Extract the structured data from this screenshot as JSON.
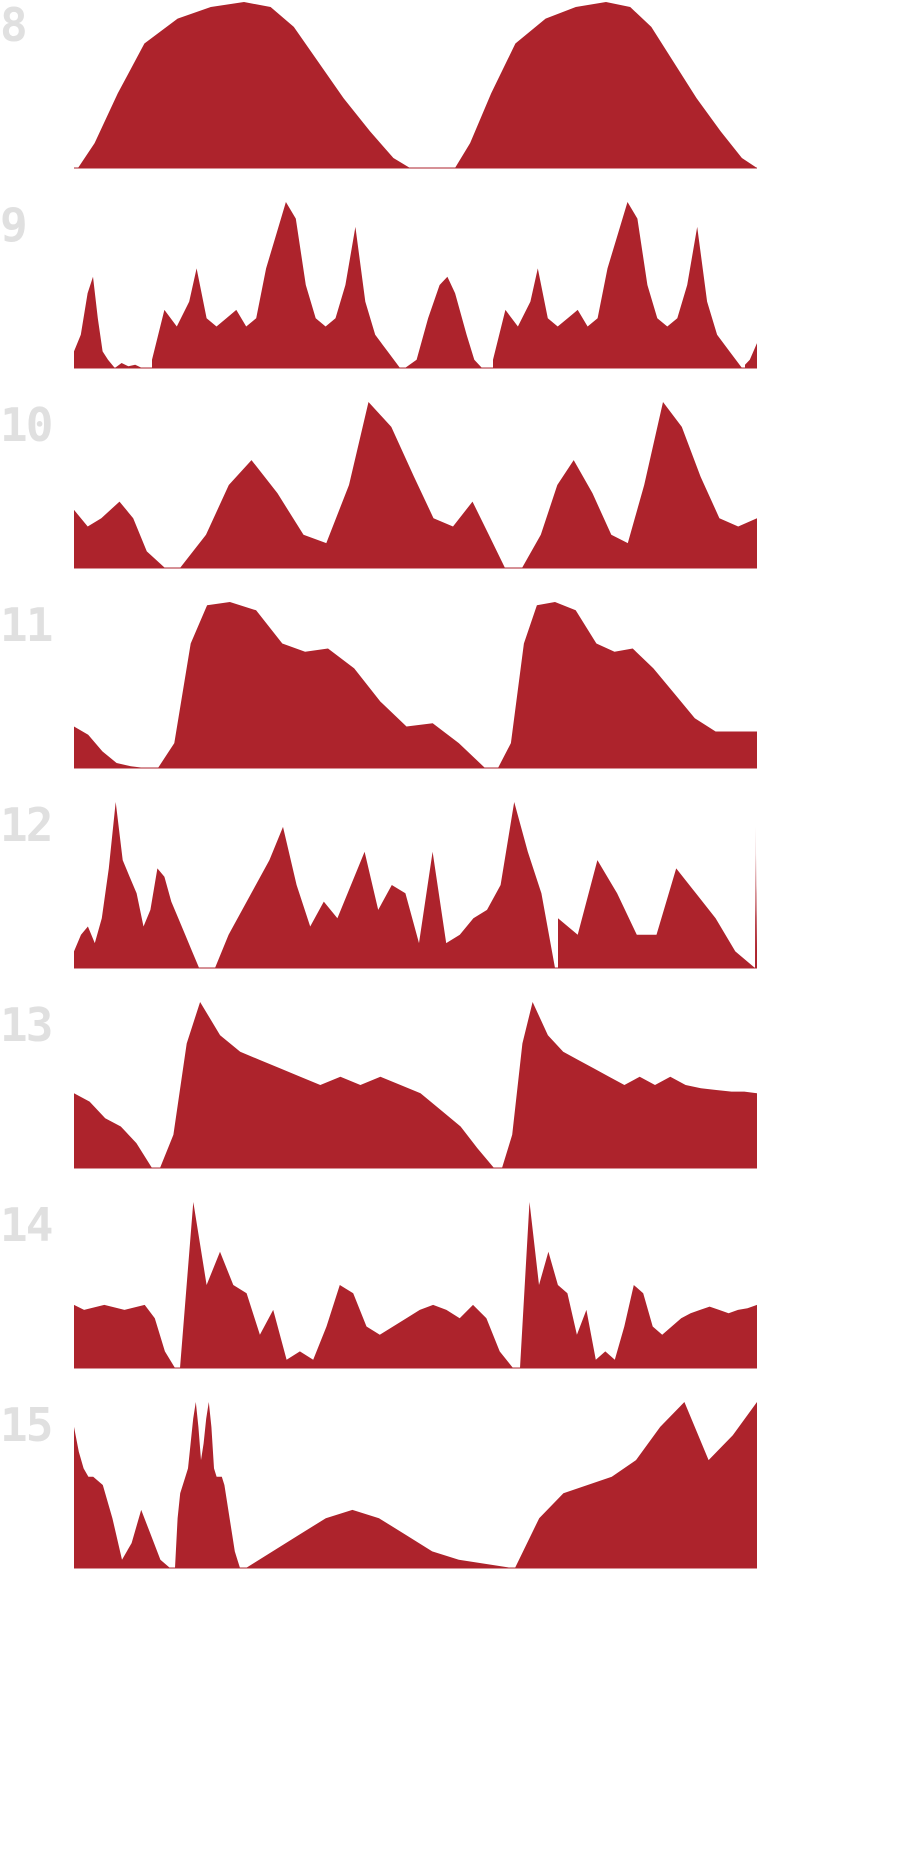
{
  "colors": {
    "fill": "#ad232c",
    "label": "#e0e0e0"
  },
  "chart_data": [
    {
      "type": "area",
      "label": "8",
      "segments": [
        {
          "x": [
            0,
            0.05,
            0.12,
            0.2,
            0.3,
            0.4,
            0.5,
            0.58,
            0.65,
            0.72,
            0.8,
            0.88,
            0.95,
            1.0
          ],
          "y": [
            0.0,
            0.15,
            0.45,
            0.75,
            0.9,
            0.97,
            1.0,
            0.97,
            0.85,
            0.65,
            0.42,
            0.22,
            0.06,
            0.0
          ]
        },
        {
          "x": [
            0,
            0.05,
            0.12,
            0.2,
            0.3,
            0.4,
            0.5,
            0.58,
            0.65,
            0.72,
            0.8,
            0.88,
            0.95,
            1.0
          ],
          "y": [
            0.0,
            0.15,
            0.45,
            0.75,
            0.9,
            0.97,
            1.0,
            0.97,
            0.85,
            0.65,
            0.42,
            0.22,
            0.06,
            0.0
          ]
        }
      ]
    },
    {
      "type": "area",
      "label": "9",
      "segments": [
        {
          "x": [
            0,
            0.1,
            0.2,
            0.28,
            0.35,
            0.42,
            0.5,
            0.6,
            0.7,
            0.8,
            0.9,
            1.0
          ],
          "y": [
            0.1,
            0.2,
            0.45,
            0.55,
            0.3,
            0.1,
            0.05,
            0.0,
            0.03,
            0.01,
            0.02,
            0.0
          ]
        },
        {
          "x": [
            0,
            0.05,
            0.1,
            0.15,
            0.18,
            0.22,
            0.26,
            0.3,
            0.34,
            0.38,
            0.42,
            0.46,
            0.5,
            0.54,
            0.58,
            0.62,
            0.66,
            0.7,
            0.74,
            0.78,
            0.82,
            0.86,
            0.9,
            0.95,
            1.0
          ],
          "y": [
            0.05,
            0.35,
            0.25,
            0.4,
            0.6,
            0.3,
            0.25,
            0.3,
            0.35,
            0.25,
            0.3,
            0.6,
            0.8,
            1.0,
            0.9,
            0.5,
            0.3,
            0.25,
            0.3,
            0.5,
            0.85,
            0.4,
            0.2,
            0.1,
            0.0
          ]
        },
        {
          "x": [
            0,
            0.15,
            0.3,
            0.45,
            0.55,
            0.65,
            0.8,
            0.9,
            1.0
          ],
          "y": [
            0.0,
            0.05,
            0.3,
            0.5,
            0.55,
            0.45,
            0.2,
            0.05,
            0.0
          ]
        },
        {
          "x": [
            0,
            0.05,
            0.1,
            0.15,
            0.18,
            0.22,
            0.26,
            0.3,
            0.34,
            0.38,
            0.42,
            0.46,
            0.5,
            0.54,
            0.58,
            0.62,
            0.66,
            0.7,
            0.74,
            0.78,
            0.82,
            0.86,
            0.9,
            0.95,
            1.0
          ],
          "y": [
            0.05,
            0.35,
            0.25,
            0.4,
            0.6,
            0.3,
            0.25,
            0.3,
            0.35,
            0.25,
            0.3,
            0.6,
            0.8,
            1.0,
            0.9,
            0.5,
            0.3,
            0.25,
            0.3,
            0.5,
            0.85,
            0.4,
            0.2,
            0.1,
            0.0
          ]
        },
        {
          "x": [
            0,
            0.4,
            1.0
          ],
          "y": [
            0.02,
            0.05,
            0.15
          ]
        }
      ]
    },
    {
      "type": "area",
      "label": "10",
      "segments": [
        {
          "x": [
            0,
            0.15,
            0.3,
            0.5,
            0.65,
            0.8,
            1.0
          ],
          "y": [
            0.35,
            0.25,
            0.3,
            0.4,
            0.3,
            0.1,
            0.0
          ]
        },
        {
          "x": [
            0,
            0.08,
            0.15,
            0.22,
            0.3,
            0.38,
            0.45,
            0.52,
            0.58,
            0.65,
            0.72,
            0.78,
            0.84,
            0.9,
            0.95,
            1.0
          ],
          "y": [
            0.0,
            0.2,
            0.5,
            0.65,
            0.45,
            0.2,
            0.15,
            0.5,
            1.0,
            0.85,
            0.55,
            0.3,
            0.25,
            0.4,
            0.2,
            0.0
          ]
        },
        {
          "x": [
            0,
            0.08,
            0.15,
            0.22,
            0.3,
            0.38,
            0.45,
            0.52,
            0.6,
            0.68,
            0.76,
            0.84,
            0.92,
            1.0
          ],
          "y": [
            0.0,
            0.2,
            0.5,
            0.65,
            0.45,
            0.2,
            0.15,
            0.5,
            1.0,
            0.85,
            0.55,
            0.3,
            0.25,
            0.3
          ]
        }
      ]
    },
    {
      "type": "area",
      "label": "11",
      "segments": [
        {
          "x": [
            0,
            0.2,
            0.4,
            0.6,
            0.8,
            1.0
          ],
          "y": [
            0.25,
            0.2,
            0.1,
            0.03,
            0.01,
            0.0
          ]
        },
        {
          "x": [
            0,
            0.05,
            0.1,
            0.15,
            0.22,
            0.3,
            0.38,
            0.45,
            0.52,
            0.6,
            0.68,
            0.76,
            0.84,
            0.92,
            1.0
          ],
          "y": [
            0.0,
            0.15,
            0.75,
            0.98,
            1.0,
            0.95,
            0.75,
            0.7,
            0.72,
            0.6,
            0.4,
            0.25,
            0.27,
            0.15,
            0.0
          ]
        },
        {
          "x": [
            0,
            0.05,
            0.1,
            0.15,
            0.22,
            0.3,
            0.38,
            0.45,
            0.52,
            0.6,
            0.68,
            0.76,
            0.84,
            0.92,
            1.0
          ],
          "y": [
            0.0,
            0.15,
            0.75,
            0.98,
            1.0,
            0.95,
            0.75,
            0.7,
            0.72,
            0.6,
            0.45,
            0.3,
            0.22,
            0.22,
            0.22
          ]
        }
      ]
    },
    {
      "type": "area",
      "label": "12",
      "segments": [
        {
          "x": [
            0,
            0.05,
            0.1,
            0.15,
            0.2,
            0.25,
            0.3,
            0.35,
            0.4,
            0.45,
            0.5,
            0.55,
            0.6,
            0.65,
            0.7,
            0.75,
            0.8,
            0.85,
            0.9,
            0.95,
            1.0
          ],
          "y": [
            0.1,
            0.2,
            0.25,
            0.15,
            0.3,
            0.6,
            1.0,
            0.65,
            0.55,
            0.45,
            0.25,
            0.35,
            0.6,
            0.55,
            0.4,
            0.3,
            0.2,
            0.1,
            0.0,
            0.0,
            0.0
          ]
        },
        {
          "x": [
            0,
            0.04,
            0.08,
            0.12,
            0.16,
            0.2,
            0.24,
            0.28,
            0.32,
            0.36,
            0.4,
            0.44,
            0.48,
            0.52,
            0.56,
            0.6,
            0.64,
            0.68,
            0.72,
            0.76,
            0.8,
            0.84,
            0.88,
            0.92,
            0.96,
            1.0
          ],
          "y": [
            0.0,
            0.2,
            0.35,
            0.5,
            0.65,
            0.85,
            0.5,
            0.25,
            0.4,
            0.3,
            0.5,
            0.7,
            0.35,
            0.5,
            0.45,
            0.15,
            0.7,
            0.15,
            0.2,
            0.3,
            0.35,
            0.5,
            1.0,
            0.7,
            0.45,
            0.0
          ]
        },
        {
          "x": [
            0,
            0.1,
            0.2,
            0.3,
            0.4,
            0.5,
            0.6,
            0.7,
            0.8,
            0.9,
            1.0
          ],
          "y": [
            0.3,
            0.2,
            0.65,
            0.45,
            0.2,
            0.2,
            0.6,
            0.45,
            0.3,
            0.1,
            0.0
          ]
        },
        {
          "x": [
            0,
            0.04,
            0.08,
            0.12,
            0.16,
            0.2,
            0.24,
            0.28,
            0.32,
            0.36,
            0.4,
            0.44,
            0.48,
            0.52,
            0.56,
            0.6,
            0.64,
            0.68,
            0.72,
            0.76,
            0.8,
            0.84,
            0.88,
            0.92,
            0.96,
            1.0
          ],
          "y": [
            0.0,
            0.2,
            0.35,
            0.5,
            0.65,
            0.85,
            0.5,
            0.25,
            0.4,
            0.3,
            0.5,
            0.7,
            0.35,
            0.5,
            0.45,
            0.15,
            0.7,
            0.15,
            0.2,
            0.3,
            0.35,
            0.5,
            0.7,
            0.6,
            0.2,
            0.1
          ]
        }
      ]
    },
    {
      "type": "area",
      "label": "13",
      "segments": [
        {
          "x": [
            0,
            0.2,
            0.4,
            0.6,
            0.8,
            1.0
          ],
          "y": [
            0.45,
            0.4,
            0.3,
            0.25,
            0.15,
            0.0
          ]
        },
        {
          "x": [
            0,
            0.04,
            0.08,
            0.12,
            0.18,
            0.24,
            0.3,
            0.36,
            0.42,
            0.48,
            0.54,
            0.6,
            0.66,
            0.72,
            0.78,
            0.84,
            0.9,
            0.95,
            1.0
          ],
          "y": [
            0.0,
            0.2,
            0.75,
            1.0,
            0.8,
            0.7,
            0.65,
            0.6,
            0.55,
            0.5,
            0.55,
            0.5,
            0.55,
            0.5,
            0.45,
            0.35,
            0.25,
            0.12,
            0.0
          ]
        },
        {
          "x": [
            0,
            0.04,
            0.08,
            0.12,
            0.18,
            0.24,
            0.3,
            0.36,
            0.42,
            0.48,
            0.54,
            0.6,
            0.66,
            0.72,
            0.78,
            0.84,
            0.9,
            0.95,
            1.0
          ],
          "y": [
            0.0,
            0.2,
            0.75,
            1.0,
            0.8,
            0.7,
            0.65,
            0.6,
            0.55,
            0.5,
            0.55,
            0.5,
            0.55,
            0.5,
            0.48,
            0.47,
            0.46,
            0.46,
            0.45
          ]
        }
      ]
    },
    {
      "type": "area",
      "label": "14",
      "segments": [
        {
          "x": [
            0,
            0.1,
            0.3,
            0.5,
            0.7,
            0.8,
            0.9,
            1.0
          ],
          "y": [
            0.38,
            0.35,
            0.38,
            0.35,
            0.38,
            0.3,
            0.1,
            0.0
          ]
        },
        {
          "x": [
            0,
            0.04,
            0.08,
            0.12,
            0.16,
            0.2,
            0.24,
            0.28,
            0.32,
            0.36,
            0.4,
            0.44,
            0.48,
            0.52,
            0.56,
            0.6,
            0.64,
            0.68,
            0.72,
            0.76,
            0.8,
            0.84,
            0.88,
            0.92,
            0.96,
            1.0
          ],
          "y": [
            0.0,
            1.0,
            0.5,
            0.7,
            0.5,
            0.45,
            0.2,
            0.35,
            0.05,
            0.1,
            0.05,
            0.25,
            0.5,
            0.45,
            0.25,
            0.2,
            0.25,
            0.3,
            0.35,
            0.38,
            0.35,
            0.3,
            0.38,
            0.3,
            0.1,
            0.0
          ]
        },
        {
          "x": [
            0,
            0.04,
            0.08,
            0.12,
            0.16,
            0.2,
            0.24,
            0.28,
            0.32,
            0.36,
            0.4,
            0.44,
            0.48,
            0.52,
            0.56,
            0.6,
            0.64,
            0.68,
            0.72,
            0.76,
            0.8,
            0.84,
            0.88,
            0.92,
            0.96,
            1.0
          ],
          "y": [
            0.0,
            1.0,
            0.5,
            0.7,
            0.5,
            0.45,
            0.2,
            0.35,
            0.05,
            0.1,
            0.05,
            0.25,
            0.5,
            0.45,
            0.25,
            0.2,
            0.25,
            0.3,
            0.33,
            0.35,
            0.37,
            0.35,
            0.33,
            0.35,
            0.36,
            0.38
          ]
        }
      ]
    },
    {
      "type": "area",
      "label": "15",
      "segments": [
        {
          "x": [
            0,
            0.05,
            0.1,
            0.15,
            0.2,
            0.3,
            0.4,
            0.5,
            0.6,
            0.7,
            0.8,
            0.9,
            1.0
          ],
          "y": [
            0.85,
            0.7,
            0.6,
            0.55,
            0.55,
            0.5,
            0.3,
            0.05,
            0.15,
            0.35,
            0.2,
            0.05,
            0.0
          ]
        },
        {
          "x": [
            0,
            0.04,
            0.08,
            0.12,
            0.16,
            0.2,
            0.24,
            0.28,
            0.32,
            0.36,
            0.4,
            0.44,
            0.48,
            0.52,
            0.56,
            0.6,
            0.64,
            0.68,
            0.72,
            0.76,
            0.8,
            0.84,
            0.88,
            0.92,
            0.96,
            1.0
          ],
          "y": [
            0.0,
            0.3,
            0.45,
            0.5,
            0.55,
            0.6,
            0.75,
            0.9,
            1.0,
            0.85,
            0.65,
            0.75,
            0.9,
            1.0,
            0.85,
            0.6,
            0.55,
            0.55,
            0.55,
            0.5,
            0.4,
            0.3,
            0.2,
            0.1,
            0.05,
            0.0
          ]
        },
        {
          "x": [
            0,
            0.2,
            0.3,
            0.4,
            0.5,
            0.6,
            0.7,
            0.8,
            1.0
          ],
          "y": [
            0.0,
            0.2,
            0.3,
            0.35,
            0.3,
            0.2,
            0.1,
            0.05,
            0.0
          ]
        },
        {
          "x": [
            0,
            0.1,
            0.2,
            0.3,
            0.4,
            0.5,
            0.6,
            0.7,
            0.8,
            0.9,
            1.0
          ],
          "y": [
            0.0,
            0.3,
            0.45,
            0.5,
            0.55,
            0.65,
            0.85,
            1.0,
            0.65,
            0.8,
            1.0
          ]
        }
      ]
    }
  ]
}
